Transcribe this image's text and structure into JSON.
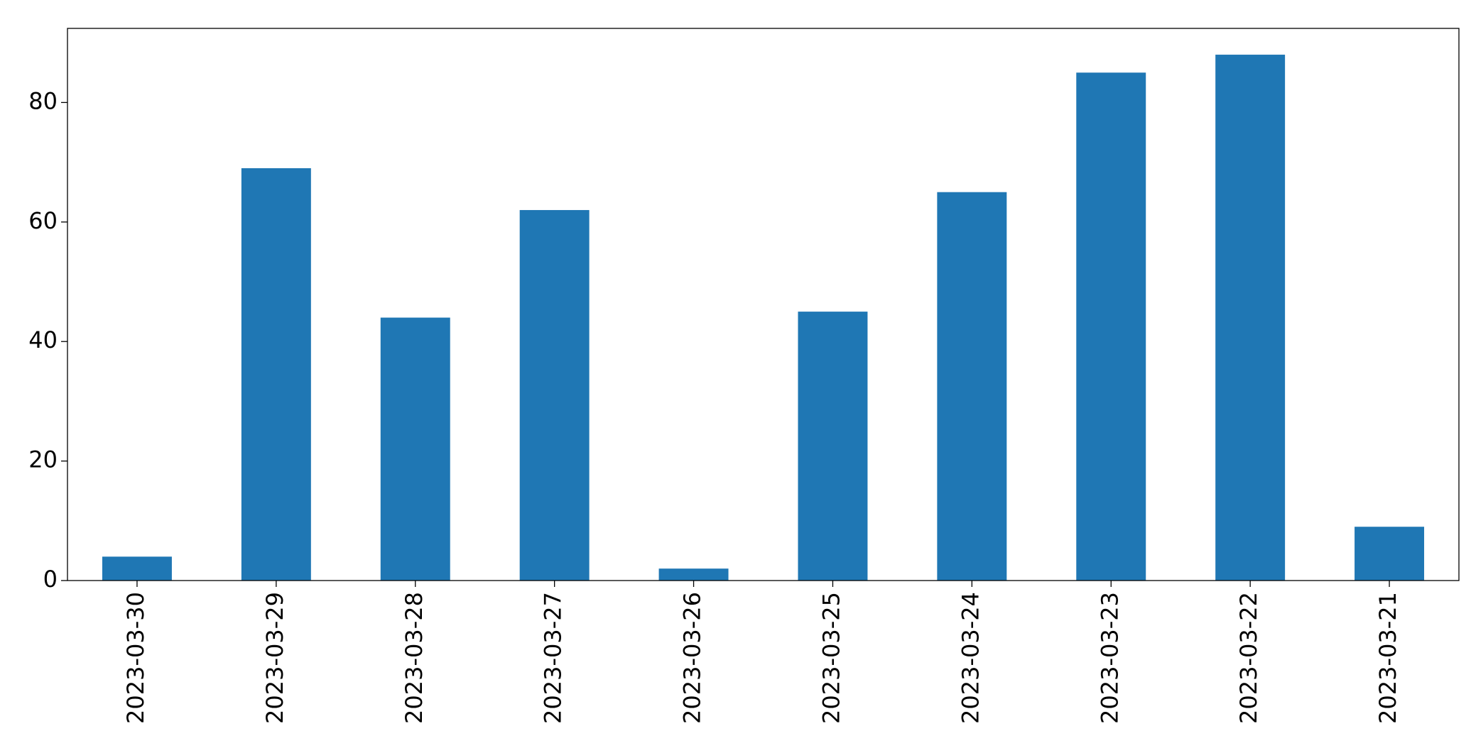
{
  "chart_data": {
    "type": "bar",
    "categories": [
      "2023-03-30",
      "2023-03-29",
      "2023-03-28",
      "2023-03-27",
      "2023-03-26",
      "2023-03-25",
      "2023-03-24",
      "2023-03-23",
      "2023-03-22",
      "2023-03-21"
    ],
    "values": [
      4,
      69,
      44,
      62,
      2,
      45,
      65,
      85,
      88,
      9
    ],
    "color": "#1f77b4",
    "ylim": [
      0,
      92.4
    ],
    "yticks": [
      0,
      20,
      40,
      60,
      80
    ],
    "grid": false
  }
}
